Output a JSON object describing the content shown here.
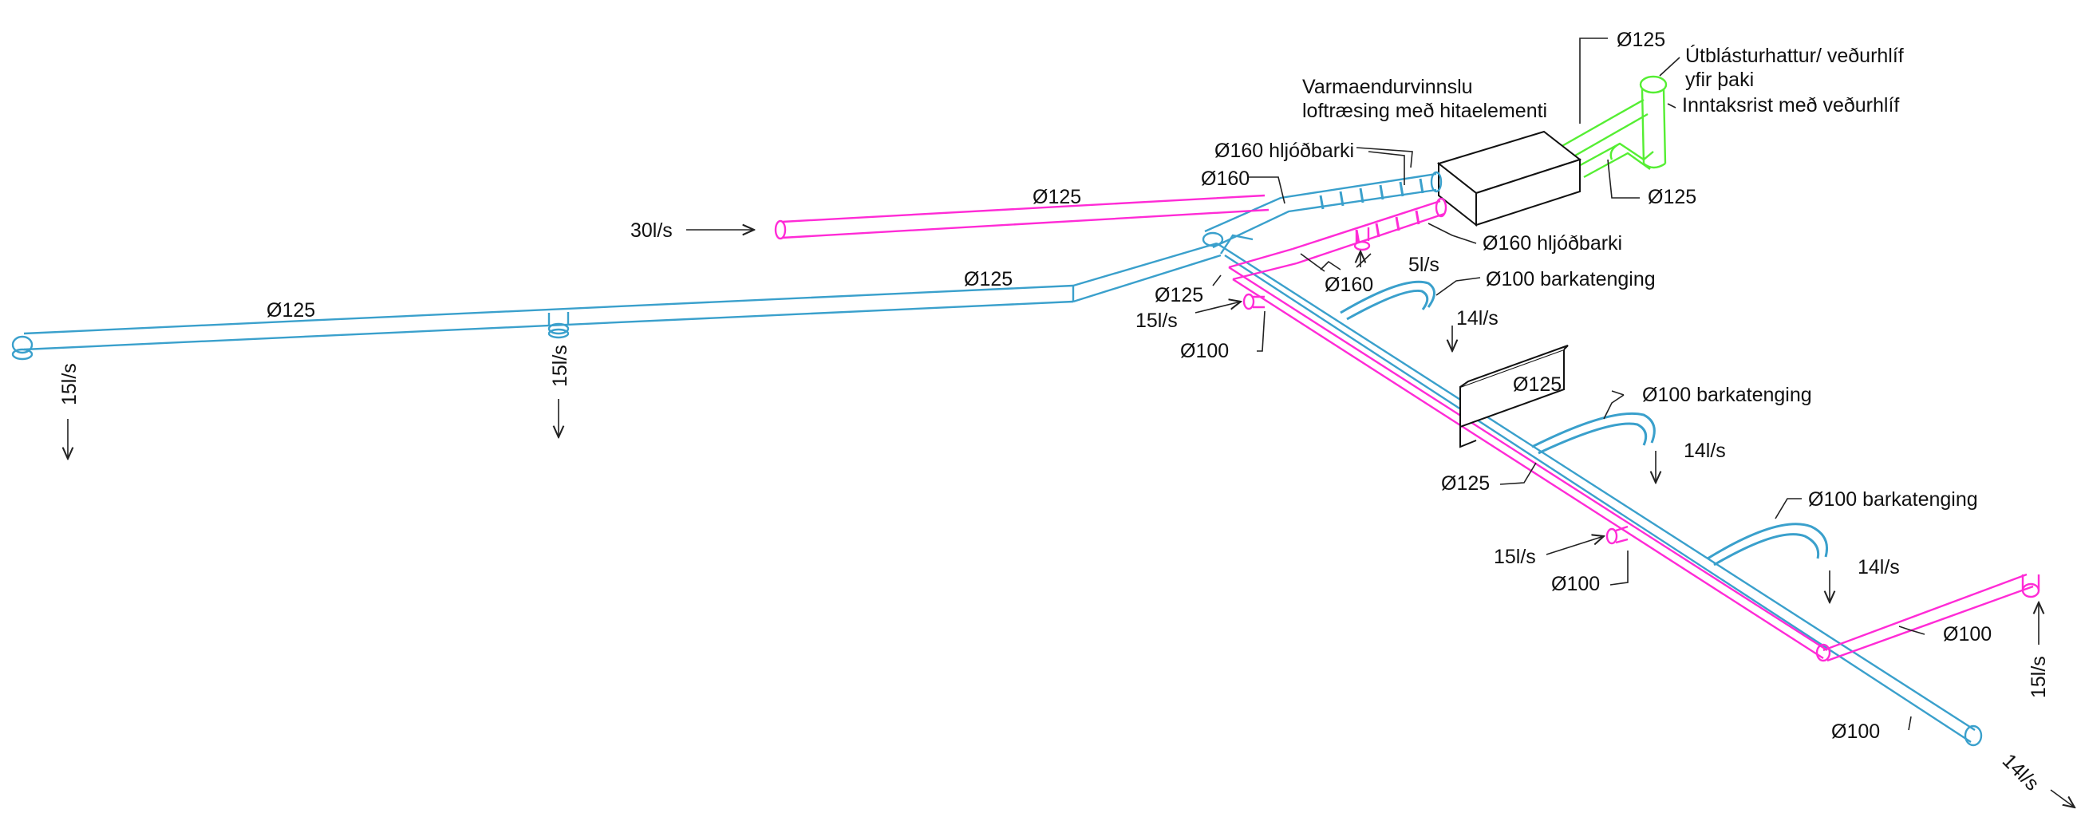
{
  "labels": {
    "d125_top": "Ø125",
    "outlet_hood": "Útblásturhattur/ veðurhlíf",
    "outlet_hood2": "yfir þaki",
    "intake": "Inntaksrist með veðurhlíf",
    "hrv1": "Varmaendurvinnslu",
    "hrv2": "loftræsing með hitaelementi",
    "d160_silencer_top": "Ø160 hljóðbarki",
    "d160_a": "Ø160",
    "d125_green_lower": "Ø125",
    "d125_magenta": "Ø125",
    "flow_30": "30l/s",
    "d160_silencer_bottom": "Ø160 hljóðbarki",
    "flow_5": "5l/s",
    "d125_left_long": "Ø125",
    "d125_left_far": "Ø125",
    "d160_b": "Ø160",
    "flex_100_a": "Ø100 barkatenging",
    "d125_mid": "Ø125",
    "flow_15_a": "15l/s",
    "flow_14_a": "14l/s",
    "d100_a": "Ø100",
    "d125_wall": "Ø125",
    "flex_100_b": "Ø100 barkatenging",
    "flow_14_b": "14l/s",
    "d125_lower": "Ø125",
    "flex_100_c": "Ø100 barkatenging",
    "flow_15_b": "15l/s",
    "flow_14_c": "14l/s",
    "d100_b": "Ø100",
    "d100_c": "Ø100",
    "flow_15_right": "15l/s",
    "d100_end": "Ø100",
    "flow_14_end": "14l/s",
    "flow_15_left1": "15l/s",
    "flow_15_left2": "15l/s"
  },
  "colors": {
    "supply": "#3aa0cc",
    "extract": "#ff2bd6",
    "outdoor": "#55ee33"
  }
}
